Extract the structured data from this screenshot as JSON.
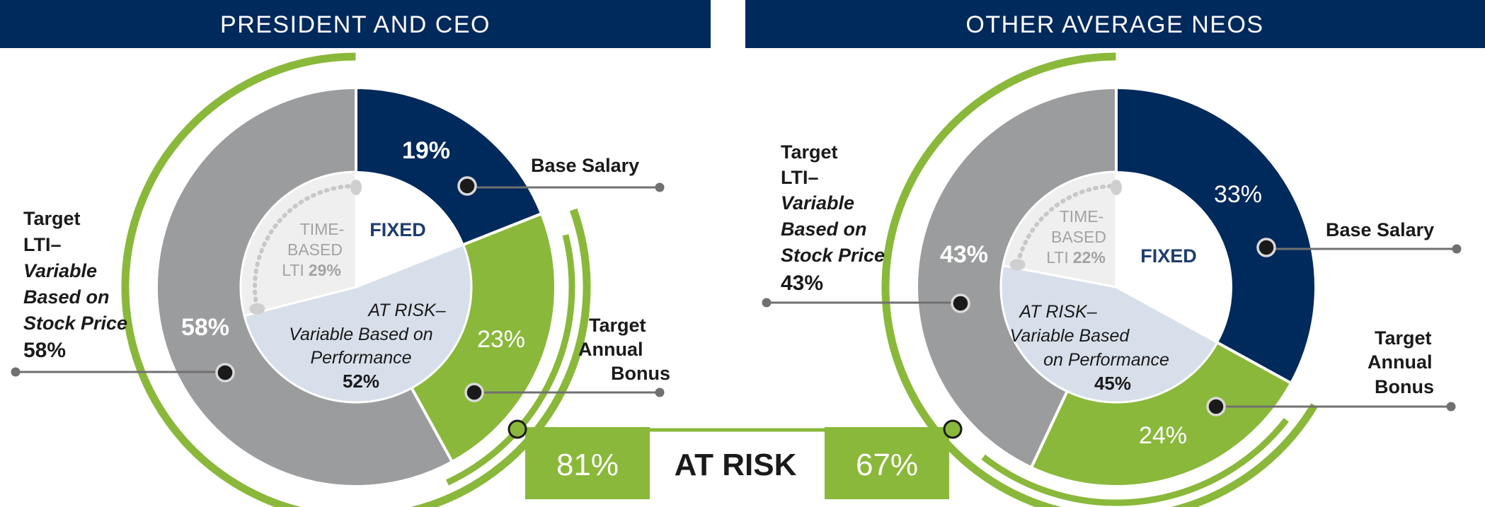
{
  "chart_data": [
    {
      "type": "pie",
      "title": "PRESIDENT AND CEO",
      "slices": [
        {
          "name": "Base Salary",
          "value": 19,
          "label": "19%",
          "color": "#00295c"
        },
        {
          "name": "Target Annual Bonus",
          "value": 23,
          "label": "23%",
          "color": "#8ab83a"
        },
        {
          "name": "Target LTI– Variable Based on Stock Price",
          "value": 58,
          "label": "58%",
          "color": "#9b9c9e"
        }
      ],
      "inner": {
        "fixed": "FIXED",
        "at_risk_lines": [
          "AT RISK–",
          "Variable Based on",
          "Performance"
        ],
        "at_risk_pct": "52%",
        "time_based_lines": [
          "TIME-",
          "BASED"
        ],
        "time_based_prefix": "LTI",
        "time_based_pct": "29%"
      },
      "callouts": {
        "base_salary": [
          "Base Salary"
        ],
        "bonus": [
          "Target",
          "Annual",
          "Bonus"
        ],
        "lti": [
          "Target",
          "LTI–",
          "Variable",
          "Based on",
          "Stock Price"
        ],
        "lti_pct": "58%"
      },
      "at_risk_total": "81%"
    },
    {
      "type": "pie",
      "title": "OTHER AVERAGE NEOS",
      "slices": [
        {
          "name": "Base Salary",
          "value": 33,
          "label": "33%",
          "color": "#00295c"
        },
        {
          "name": "Target Annual Bonus",
          "value": 24,
          "label": "24%",
          "color": "#8ab83a"
        },
        {
          "name": "Target LTI– Variable Based on Stock Price",
          "value": 43,
          "label": "43%",
          "color": "#9b9c9e"
        }
      ],
      "inner": {
        "fixed": "FIXED",
        "at_risk_lines": [
          "AT RISK–",
          "Variable Based",
          "on Performance"
        ],
        "at_risk_pct": "45%",
        "time_based_lines": [
          "TIME-",
          "BASED"
        ],
        "time_based_prefix": "LTI",
        "time_based_pct": "22%"
      },
      "callouts": {
        "base_salary": [
          "Base Salary"
        ],
        "bonus": [
          "Target",
          "Annual",
          "Bonus"
        ],
        "lti": [
          "Target",
          "LTI–",
          "Variable",
          "Based on",
          "Stock Price"
        ],
        "lti_pct": "43%"
      },
      "at_risk_total": "67%"
    }
  ],
  "at_risk_label": "AT RISK",
  "colors": {
    "navy": "#00295c",
    "green": "#8ab83a",
    "gray": "#9b9c9e",
    "inner_risk": "#d7e0ea",
    "inner_time": "#efefef",
    "inner_fixed": "#ffffff"
  }
}
